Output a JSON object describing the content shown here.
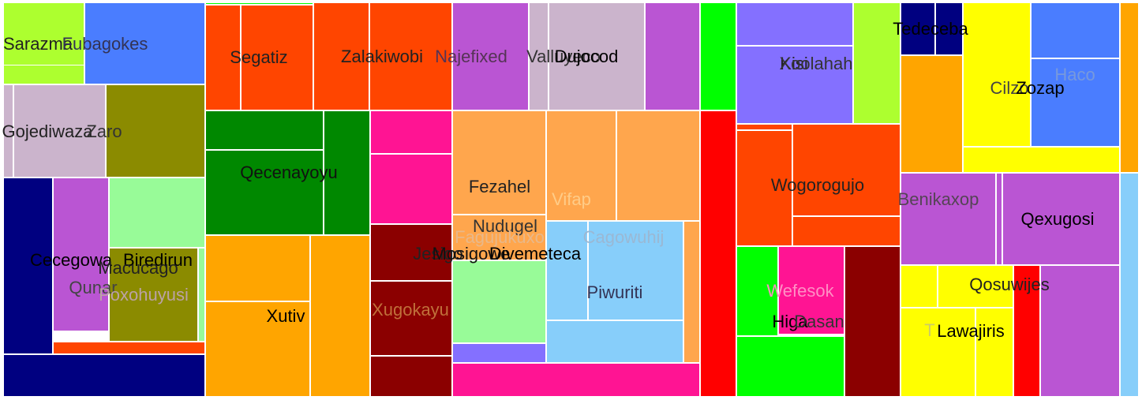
{
  "chart_data": {
    "type": "treemap",
    "colors": {
      "light_green": "#adff2f",
      "royal_blue": "#4a7dff",
      "thistle": "#cbb4cc",
      "olive": "#8b8b00",
      "navy": "#000080",
      "orchid": "#ba55d3",
      "pale_green": "#98fb98",
      "orange_red": "#ff4500",
      "green": "#008800",
      "orange": "#ffa500",
      "deep_pink": "#ff1493",
      "dark_red": "#8b0000",
      "sandy": "#ffa64d",
      "sky": "#87cefa",
      "slate_blue": "#8470ff",
      "lime": "#00ff00",
      "red": "#ff0000",
      "yellow": "#ffff00"
    },
    "labels": [
      {
        "text": "Sarazma",
        "color": "#222222"
      },
      {
        "text": "Fubagokes",
        "color": "#333355"
      },
      {
        "text": "Gojediwaza",
        "color": "#222222"
      },
      {
        "text": "Zaro",
        "color": "#333333"
      },
      {
        "text": "Cecegowa",
        "color": "#000000"
      },
      {
        "text": "Biredirun",
        "color": "#000000"
      },
      {
        "text": "Macucago",
        "color": "#222222"
      },
      {
        "text": "Qunar",
        "color": "#444444"
      },
      {
        "text": "Poxohuyusi",
        "color": "#bba2a6"
      },
      {
        "text": "Segatiz",
        "color": "#222222"
      },
      {
        "text": "Zalakiwobi",
        "color": "#222222"
      },
      {
        "text": "Najefixed",
        "color": "#553355"
      },
      {
        "text": "Valluyeco",
        "color": "#333333"
      },
      {
        "text": "Dujocod",
        "color": "#000000"
      },
      {
        "text": "Qecenayoyu",
        "color": "#111111"
      },
      {
        "text": "Xutiv",
        "color": "#000000"
      },
      {
        "text": "Xugokayu",
        "color": "#c0703a"
      },
      {
        "text": "Fezahel",
        "color": "#222222"
      },
      {
        "text": "Vifap",
        "color": "#ffcc88"
      },
      {
        "text": "Nudugel",
        "color": "#333333"
      },
      {
        "text": "Fagujukuxo",
        "color": "#e8b88a"
      },
      {
        "text": "Cagowuhij",
        "color": "#9ab8d4"
      },
      {
        "text": "Jesigo",
        "color": "#222222"
      },
      {
        "text": "Mosigowe",
        "color": "#111111"
      },
      {
        "text": "Divemeteca",
        "color": "#000000"
      },
      {
        "text": "Piwuriti",
        "color": "#333355"
      },
      {
        "text": "Kisi",
        "color": "#222222"
      },
      {
        "text": "Xoolahah",
        "color": "#333333"
      },
      {
        "text": "Wogorogujo",
        "color": "#222222"
      },
      {
        "text": "Wefesok",
        "color": "#ff8fc4"
      },
      {
        "text": "Higa",
        "color": "#000000"
      },
      {
        "text": "Dasan",
        "color": "#333333"
      },
      {
        "text": "Tedeceba",
        "color": "#000000"
      },
      {
        "text": "Cilzo",
        "color": "#444444"
      },
      {
        "text": "Zozap",
        "color": "#000000"
      },
      {
        "text": "Haco",
        "color": "#7799dd"
      },
      {
        "text": "Benikaxop",
        "color": "#554455"
      },
      {
        "text": "Qexugosi",
        "color": "#000000"
      },
      {
        "text": "Qosuwijes",
        "color": "#222222"
      },
      {
        "text": "T",
        "color": "#cccc66"
      },
      {
        "text": "Lawajiris",
        "color": "#000000"
      }
    ]
  }
}
